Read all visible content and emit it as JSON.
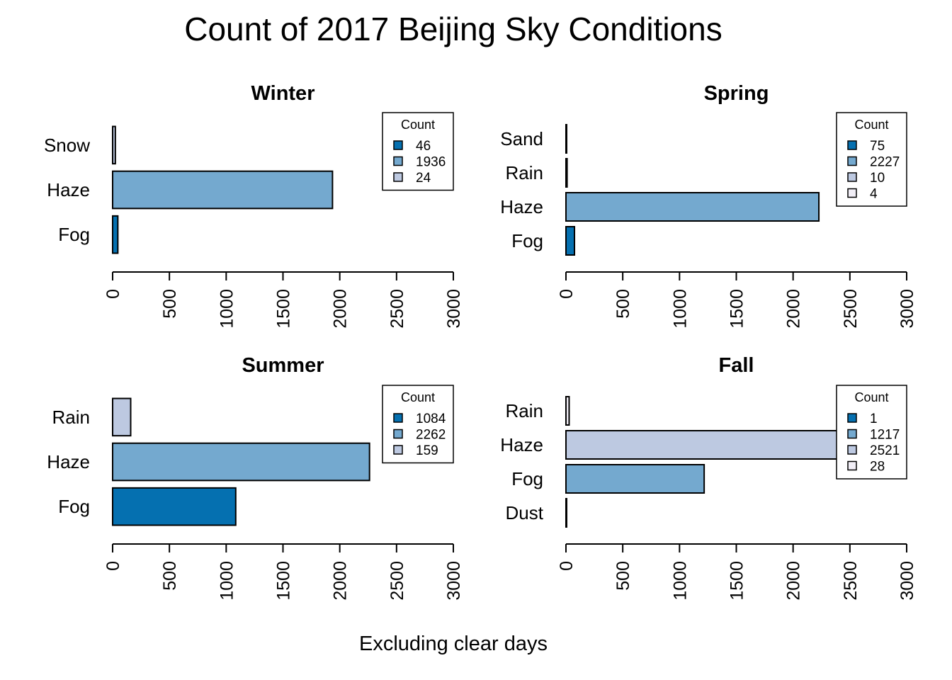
{
  "page": {
    "title": "Count of 2017 Beijing Sky Conditions",
    "caption": "Excluding clear days"
  },
  "colors": {
    "c1": "#0570b0",
    "c2": "#74a9cf",
    "c3": "#bdc9e1",
    "c4": "#f1eef6",
    "axis": "#000000"
  },
  "chart_data": [
    {
      "type": "bar",
      "orientation": "horizontal",
      "title": "Winter",
      "categories": [
        "Fog",
        "Haze",
        "Snow"
      ],
      "values": [
        46,
        1936,
        24
      ],
      "bar_colors": [
        "#0570b0",
        "#74a9cf",
        "#bdc9e1"
      ],
      "xlim": [
        0,
        3000
      ],
      "ticks": [
        0,
        500,
        1000,
        1500,
        2000,
        2500,
        3000
      ],
      "legend": {
        "title": "Count",
        "position": "top-right",
        "entries": [
          "46",
          "1936",
          "24"
        ],
        "colors": [
          "#0570b0",
          "#74a9cf",
          "#bdc9e1"
        ]
      }
    },
    {
      "type": "bar",
      "orientation": "horizontal",
      "title": "Spring",
      "categories": [
        "Fog",
        "Haze",
        "Rain",
        "Sand"
      ],
      "values": [
        75,
        2227,
        10,
        4
      ],
      "bar_colors": [
        "#0570b0",
        "#74a9cf",
        "#bdc9e1",
        "#f1eef6"
      ],
      "xlim": [
        0,
        3000
      ],
      "ticks": [
        0,
        500,
        1000,
        1500,
        2000,
        2500,
        3000
      ],
      "legend": {
        "title": "Count",
        "position": "top-right",
        "entries": [
          "75",
          "2227",
          "10",
          "4"
        ],
        "colors": [
          "#0570b0",
          "#74a9cf",
          "#bdc9e1",
          "#f1eef6"
        ]
      }
    },
    {
      "type": "bar",
      "orientation": "horizontal",
      "title": "Summer",
      "categories": [
        "Fog",
        "Haze",
        "Rain"
      ],
      "values": [
        1084,
        2262,
        159
      ],
      "bar_colors": [
        "#0570b0",
        "#74a9cf",
        "#bdc9e1"
      ],
      "xlim": [
        0,
        3000
      ],
      "ticks": [
        0,
        500,
        1000,
        1500,
        2000,
        2500,
        3000
      ],
      "legend": {
        "title": "Count",
        "position": "top-right",
        "entries": [
          "1084",
          "2262",
          "159"
        ],
        "colors": [
          "#0570b0",
          "#74a9cf",
          "#bdc9e1"
        ]
      }
    },
    {
      "type": "bar",
      "orientation": "horizontal",
      "title": "Fall",
      "categories": [
        "Dust",
        "Fog",
        "Haze",
        "Rain"
      ],
      "values": [
        1,
        1217,
        2521,
        28
      ],
      "bar_colors": [
        "#0570b0",
        "#74a9cf",
        "#bdc9e1",
        "#f1eef6"
      ],
      "xlim": [
        0,
        3000
      ],
      "ticks": [
        0,
        500,
        1000,
        1500,
        2000,
        2500,
        3000
      ],
      "legend": {
        "title": "Count",
        "position": "top-right",
        "entries": [
          "1",
          "1217",
          "2521",
          "28"
        ],
        "colors": [
          "#0570b0",
          "#74a9cf",
          "#bdc9e1",
          "#f1eef6"
        ]
      }
    }
  ]
}
